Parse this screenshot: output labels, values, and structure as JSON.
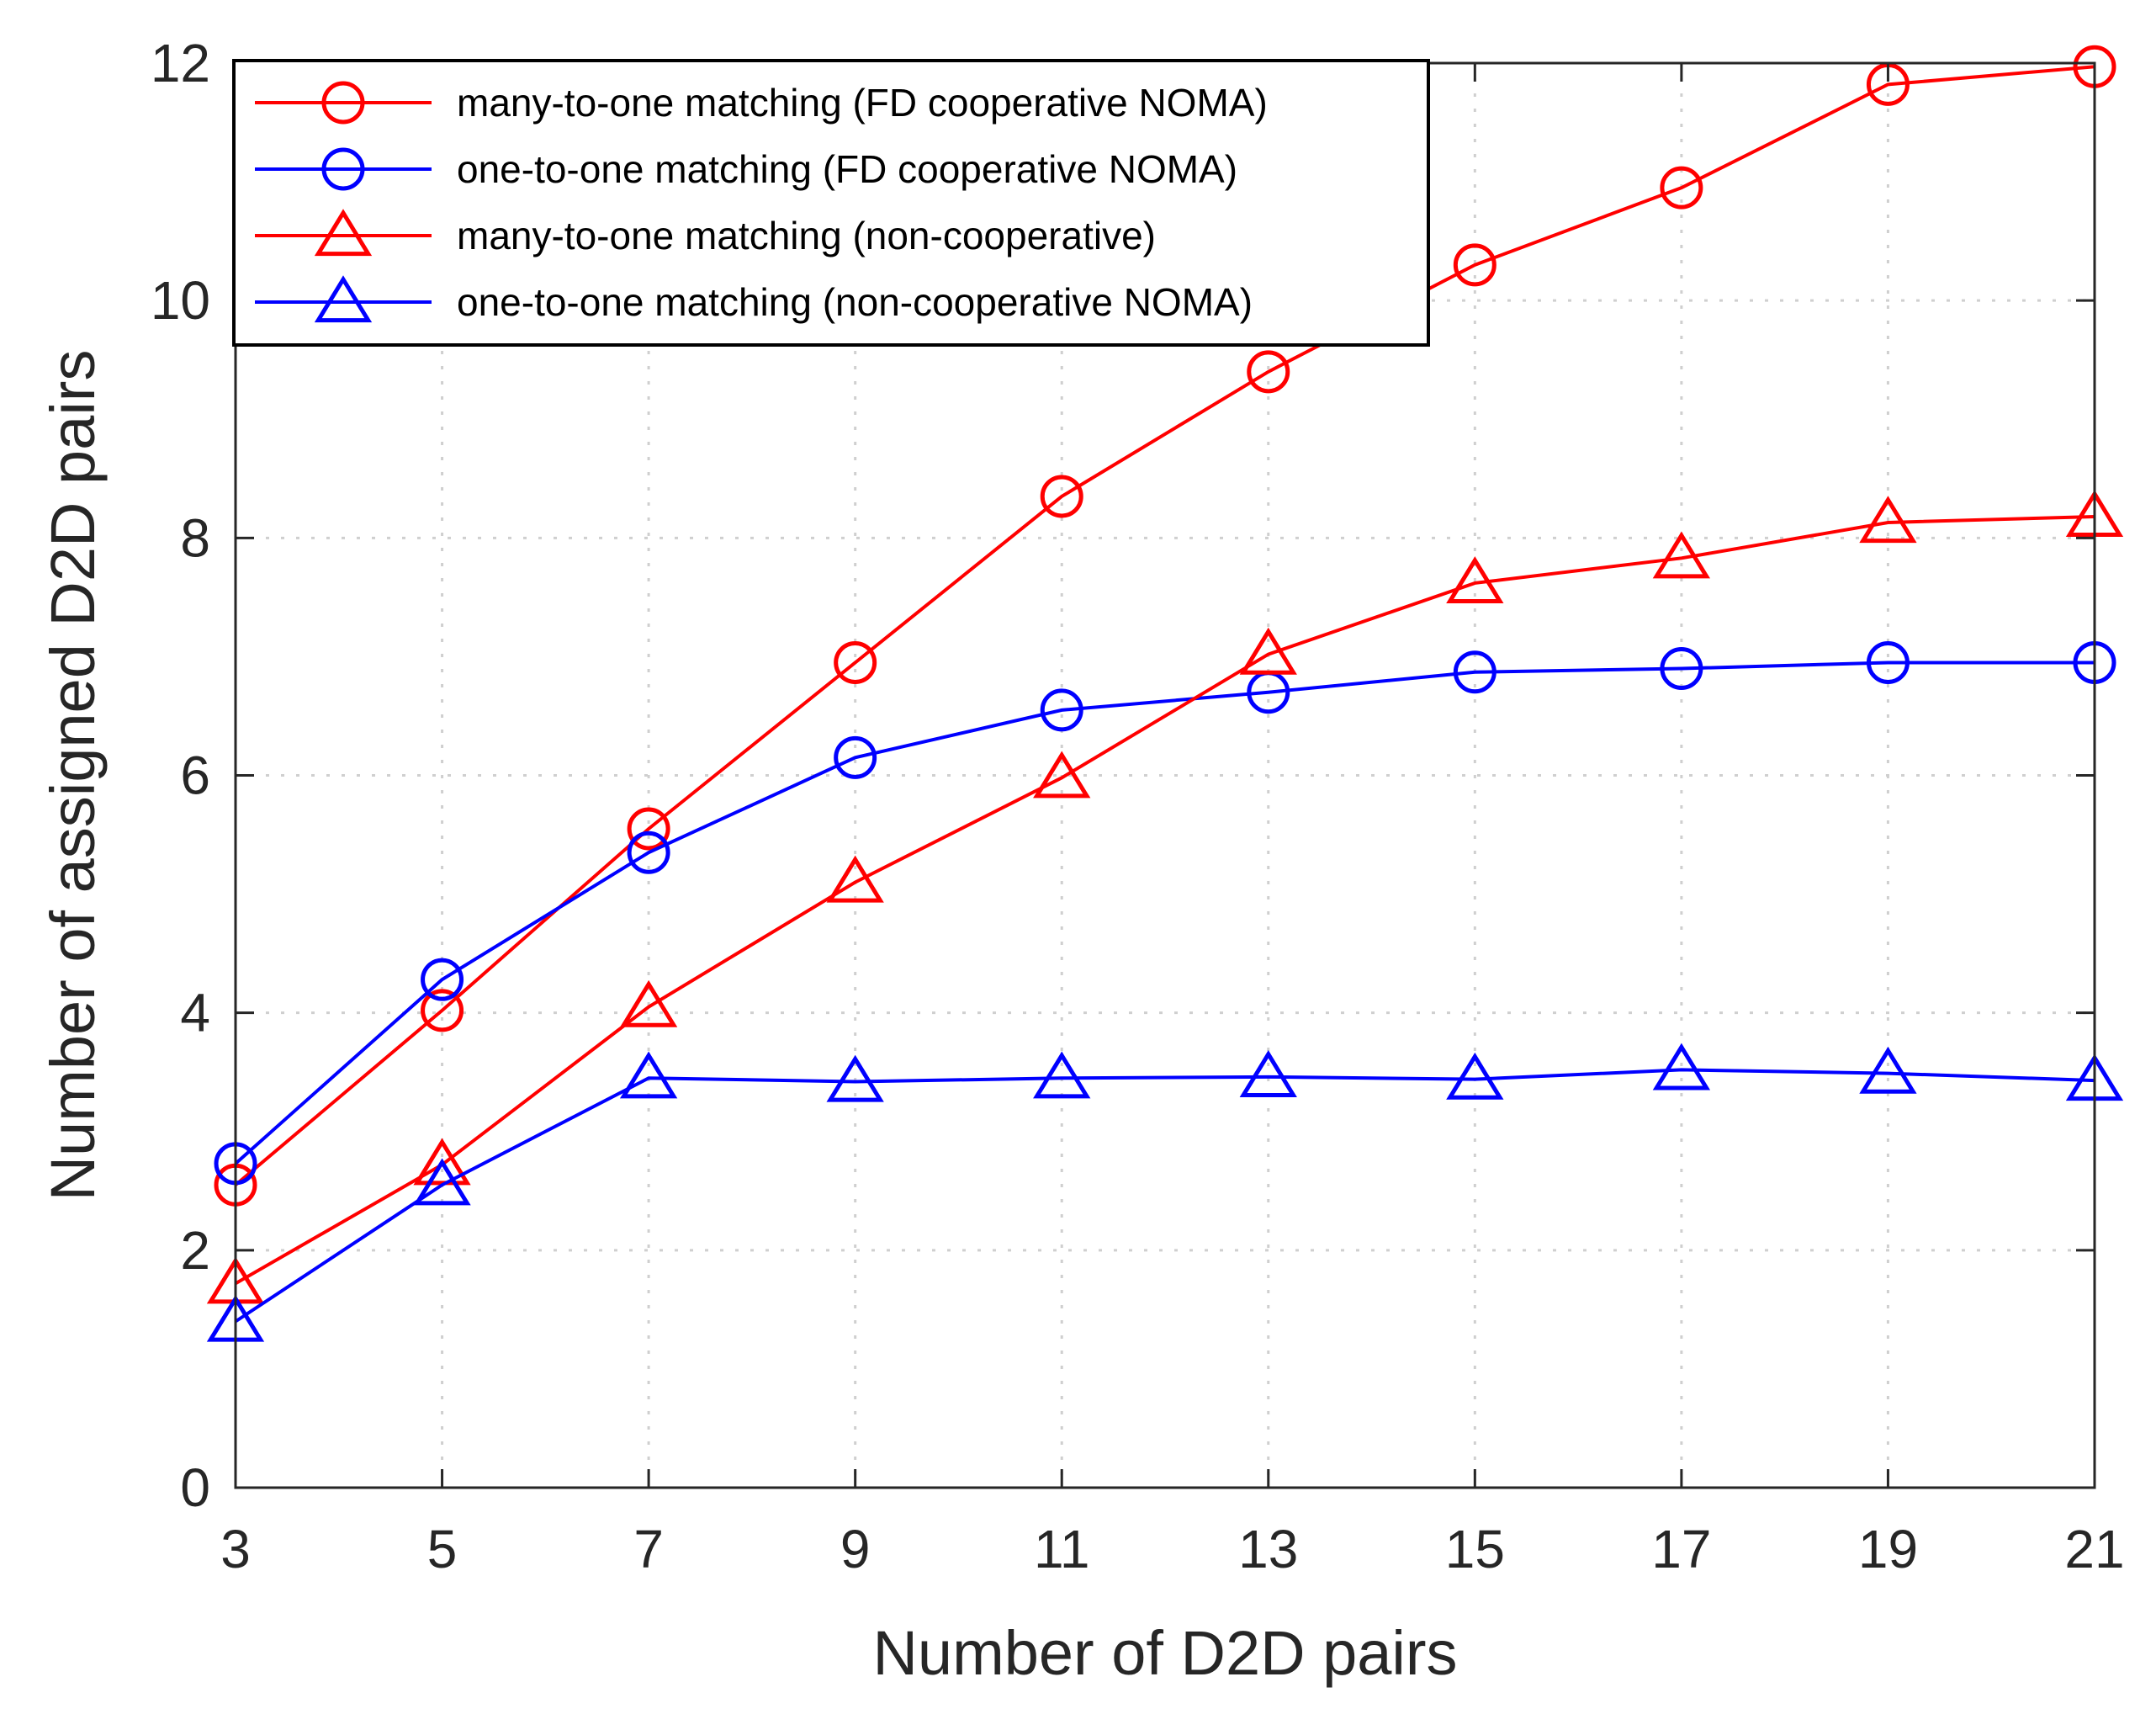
{
  "chart_data": {
    "type": "line",
    "title": "",
    "xlabel": "Number of D2D pairs",
    "ylabel": "Number of assigned D2D pairs",
    "x": [
      3,
      5,
      7,
      9,
      11,
      13,
      15,
      17,
      19,
      21
    ],
    "xlim": [
      3,
      21
    ],
    "ylim": [
      0,
      12
    ],
    "xticks": [
      3,
      5,
      7,
      9,
      11,
      13,
      15,
      17,
      19,
      21
    ],
    "yticks": [
      0,
      2,
      4,
      6,
      8,
      10,
      12
    ],
    "grid": true,
    "legend_position": "top-left",
    "series": [
      {
        "name": "many-to-one matching (FD cooperative NOMA)",
        "color": "#ff0000",
        "marker": "circle",
        "values": [
          2.55,
          4.02,
          5.55,
          6.95,
          8.35,
          9.4,
          10.3,
          10.95,
          11.82,
          11.97
        ]
      },
      {
        "name": "one-to-one matching (FD cooperative NOMA)",
        "color": "#0000ff",
        "marker": "circle",
        "values": [
          2.73,
          4.28,
          5.35,
          6.15,
          6.55,
          6.7,
          6.87,
          6.9,
          6.95,
          6.95
        ]
      },
      {
        "name": "many-to-one matching (non-cooperative)",
        "color": "#ff0000",
        "marker": "triangle",
        "values": [
          1.72,
          2.72,
          4.05,
          5.1,
          5.98,
          7.02,
          7.62,
          7.83,
          8.13,
          8.18
        ]
      },
      {
        "name": "one-to-one matching (non-cooperative NOMA)",
        "color": "#0000ff",
        "marker": "triangle",
        "values": [
          1.4,
          2.55,
          3.45,
          3.42,
          3.45,
          3.46,
          3.44,
          3.52,
          3.49,
          3.43
        ]
      }
    ]
  }
}
